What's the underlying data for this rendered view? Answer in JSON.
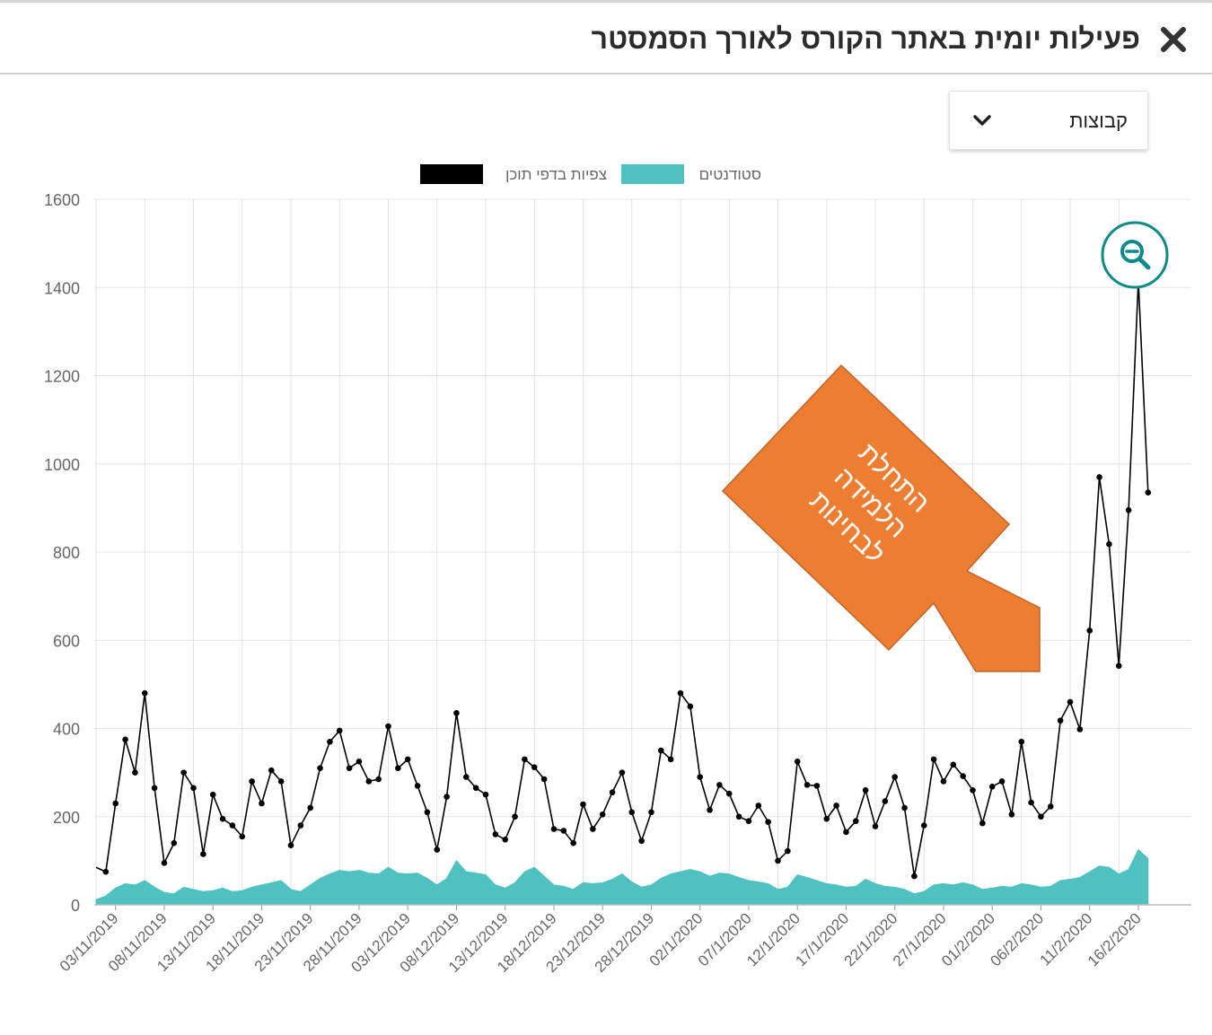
{
  "header": {
    "title": "פעילות יומית באתר הקורס לאורך הסמסטר",
    "close_icon": "close-icon"
  },
  "filter": {
    "selected": "קבוצות",
    "icon": "chevron-down-icon"
  },
  "zoom": {
    "icon": "zoom-out-icon"
  },
  "annotation": {
    "lines": [
      "התחלת",
      "הלמידה",
      "לבחינות"
    ],
    "color": "#ED7D31"
  },
  "chart_data": {
    "type": "line",
    "title": "",
    "xlabel": "",
    "ylabel": "",
    "ylim": [
      0,
      1600
    ],
    "yticks": [
      0,
      200,
      400,
      600,
      800,
      1000,
      1200,
      1400,
      1600
    ],
    "grid": true,
    "legend_position": "top-center",
    "x_start": "01/11/2019",
    "x_tick_labels": [
      "03/11/2019",
      "08/11/2019",
      "13/11/2019",
      "18/11/2019",
      "23/11/2019",
      "28/11/2019",
      "03/12/2019",
      "08/12/2019",
      "13/12/2019",
      "18/12/2019",
      "23/12/2019",
      "28/12/2019",
      "02/1/2020",
      "07/1/2020",
      "12/1/2020",
      "17/1/2020",
      "22/1/2020",
      "27/1/2020",
      "01/2/2020",
      "06/2/2020",
      "11/2/2020",
      "16/2/2020"
    ],
    "series": [
      {
        "name": "צפיות בדפי תוכן",
        "color": "#000000",
        "kind": "line",
        "values": [
          85,
          75,
          230,
          375,
          300,
          480,
          265,
          95,
          140,
          300,
          265,
          115,
          250,
          195,
          180,
          155,
          280,
          230,
          305,
          280,
          135,
          180,
          220,
          310,
          370,
          395,
          310,
          325,
          280,
          285,
          405,
          310,
          330,
          270,
          210,
          125,
          245,
          435,
          290,
          265,
          250,
          160,
          148,
          200,
          330,
          312,
          285,
          172,
          168,
          140,
          228,
          172,
          205,
          255,
          300,
          210,
          145,
          210,
          350,
          330,
          480,
          450,
          290,
          215,
          272,
          252,
          200,
          190,
          225,
          188,
          100,
          122,
          325,
          272,
          270,
          195,
          225,
          165,
          190,
          260,
          178,
          235,
          290,
          220,
          65,
          180,
          330,
          280,
          318,
          292,
          260,
          185,
          268,
          280,
          205,
          370,
          232,
          200,
          223,
          418,
          460,
          398,
          622,
          970,
          818,
          542,
          895,
          1415,
          935
        ]
      },
      {
        "name": "סטודנטים",
        "color": "#4FC1C1",
        "kind": "area",
        "values": [
          12,
          20,
          38,
          48,
          45,
          55,
          40,
          28,
          25,
          40,
          35,
          30,
          32,
          38,
          30,
          32,
          40,
          45,
          50,
          55,
          35,
          30,
          45,
          60,
          70,
          78,
          75,
          78,
          72,
          70,
          85,
          72,
          70,
          72,
          60,
          45,
          60,
          100,
          75,
          72,
          68,
          45,
          38,
          50,
          75,
          85,
          65,
          45,
          42,
          35,
          50,
          48,
          50,
          58,
          70,
          52,
          40,
          45,
          60,
          70,
          75,
          80,
          75,
          65,
          72,
          70,
          62,
          55,
          52,
          48,
          35,
          40,
          68,
          62,
          55,
          48,
          45,
          40,
          42,
          58,
          48,
          42,
          40,
          35,
          25,
          30,
          45,
          48,
          45,
          50,
          45,
          35,
          38,
          42,
          40,
          48,
          45,
          40,
          42,
          55,
          58,
          62,
          75,
          88,
          85,
          70,
          80,
          125,
          105
        ]
      }
    ]
  }
}
